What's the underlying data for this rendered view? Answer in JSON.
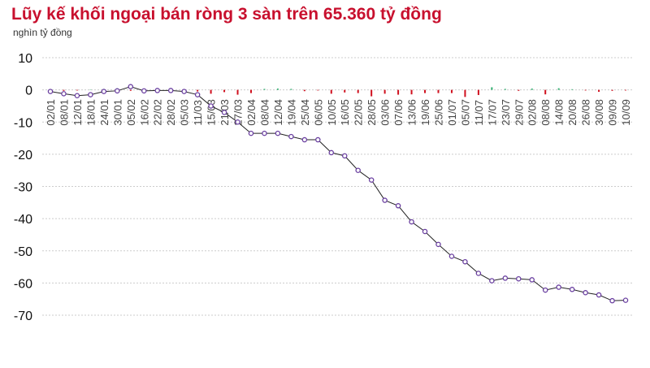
{
  "chart_data": {
    "type": "line",
    "title": "Lũy kế khối ngoại bán ròng 3 sàn trên 65.360 tỷ đồng",
    "ylabel": "nghìn tỷ đồng",
    "ylim": [
      -70,
      10
    ],
    "yticks": [
      10,
      0,
      -10,
      -20,
      -30,
      -40,
      -50,
      -60,
      -70
    ],
    "grid": true,
    "colors": {
      "line": "#6a3fa0",
      "positive_bar": "#2eae6e",
      "negative_bar": "#d0101e",
      "title": "#c8102e"
    },
    "categories": [
      "02/01",
      "08/01",
      "12/01",
      "18/01",
      "24/01",
      "30/01",
      "05/02",
      "16/02",
      "22/02",
      "28/02",
      "05/03",
      "11/03",
      "15/03",
      "21/03",
      "27/03",
      "02/04",
      "08/04",
      "12/04",
      "19/04",
      "25/04",
      "06/05",
      "10/05",
      "16/05",
      "22/05",
      "28/05",
      "03/06",
      "07/06",
      "13/06",
      "19/06",
      "25/06",
      "01/07",
      "05/07",
      "11/07",
      "17/07",
      "23/07",
      "29/07",
      "02/08",
      "08/08",
      "14/08",
      "20/08",
      "26/08",
      "30/08",
      "09/09",
      "10/09"
    ],
    "series": [
      {
        "type": "line",
        "values": [
          -0.5,
          -1.2,
          -1.8,
          -1.5,
          -0.5,
          -0.3,
          1.0,
          -0.3,
          -0.2,
          -0.2,
          -0.5,
          -1.5,
          -5,
          -7,
          -10,
          -13.5,
          -13.5,
          -13.5,
          -14.5,
          -15.5,
          -15.5,
          -19.5,
          -20.5,
          -25,
          -28,
          -34.3,
          -36,
          -41,
          -44,
          -48,
          -51.7,
          -53.4,
          -57,
          -59.3,
          -58.5,
          -58.7,
          -59,
          -62.2,
          -61.3,
          -62,
          -63,
          -63.7,
          -65.5,
          -65.36
        ]
      },
      {
        "type": "bar",
        "values": [
          -0.2,
          -0.3,
          -0.2,
          0.1,
          0.3,
          0.5,
          -0.3,
          0.4,
          -0.5,
          -0.1,
          -0.2,
          -0.5,
          -1.2,
          -0.7,
          -1.5,
          -1.0,
          0.3,
          0.4,
          0.3,
          -0.4,
          -0.2,
          -1.2,
          -0.8,
          -1.0,
          -2.0,
          -1.2,
          -1.5,
          -1.4,
          -1.0,
          -1.0,
          -1.0,
          -2.2,
          -1.6,
          0.8,
          0.3,
          -0.3,
          0.4,
          -1.4,
          0.5,
          0.2,
          -0.2,
          -0.6,
          -0.3,
          -0.2
        ]
      }
    ]
  }
}
